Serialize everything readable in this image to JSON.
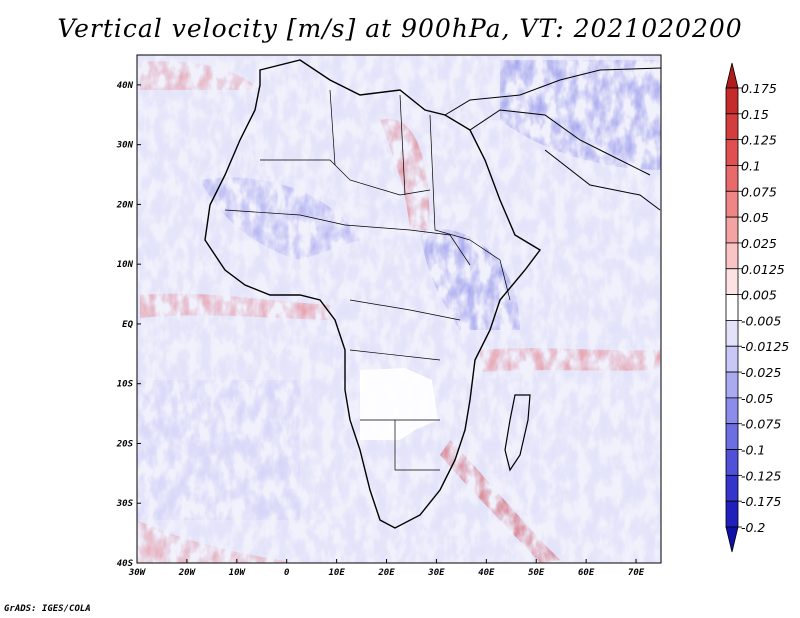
{
  "title": "Vertical velocity [m/s] at 900hPa, VT: 2021020200",
  "software_credit": "GrADS: IGES/COLA",
  "map": {
    "variable": "Vertical velocity",
    "units": "m/s",
    "level": "900hPa",
    "valid_time": "2021020200",
    "region": "Africa",
    "lon_range": [
      -30,
      75
    ],
    "lat_range": [
      -40,
      45
    ],
    "lon_ticks": [
      {
        "value": -30,
        "label": "30W"
      },
      {
        "value": -20,
        "label": "20W"
      },
      {
        "value": -10,
        "label": "10W"
      },
      {
        "value": 0,
        "label": "0"
      },
      {
        "value": 10,
        "label": "10E"
      },
      {
        "value": 20,
        "label": "20E"
      },
      {
        "value": 30,
        "label": "30E"
      },
      {
        "value": 40,
        "label": "40E"
      },
      {
        "value": 50,
        "label": "50E"
      },
      {
        "value": 60,
        "label": "60E"
      },
      {
        "value": 70,
        "label": "70E"
      }
    ],
    "lat_ticks": [
      {
        "value": 40,
        "label": "40N"
      },
      {
        "value": 30,
        "label": "30N"
      },
      {
        "value": 20,
        "label": "20N"
      },
      {
        "value": 10,
        "label": "10N"
      },
      {
        "value": 0,
        "label": "EQ"
      },
      {
        "value": -10,
        "label": "10S"
      },
      {
        "value": -20,
        "label": "20S"
      },
      {
        "value": -30,
        "label": "30S"
      },
      {
        "value": -40,
        "label": "40S"
      }
    ]
  },
  "colorbar": {
    "labels": [
      "0.175",
      "0.15",
      "0.125",
      "0.1",
      "0.075",
      "0.05",
      "0.025",
      "0.0125",
      "0.005",
      "-0.005",
      "-0.0125",
      "-0.025",
      "-0.05",
      "-0.075",
      "-0.1",
      "-0.125",
      "-0.175",
      "-0.2"
    ],
    "colors": [
      "#b01c1c",
      "#c52b2b",
      "#d43d3d",
      "#e05050",
      "#e96a6a",
      "#ef8686",
      "#f4a3a3",
      "#f9c4c4",
      "#fce2e2",
      "#ffffff",
      "#e2e2fb",
      "#c8c8f7",
      "#aaaaf1",
      "#8c8ceb",
      "#6e6ee3",
      "#5050d9",
      "#3535cc",
      "#2020bd",
      "#1010a8"
    ]
  }
}
